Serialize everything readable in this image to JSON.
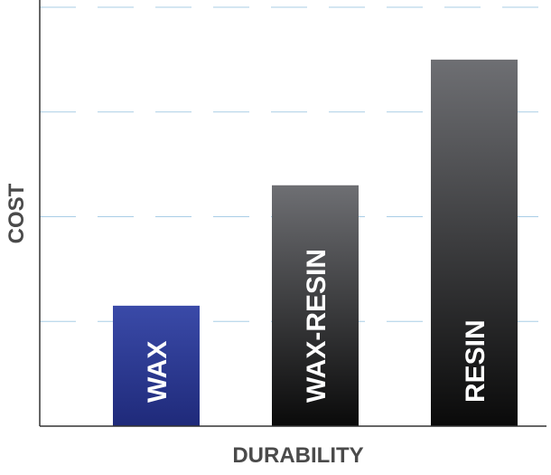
{
  "chart_data": {
    "type": "bar",
    "title": "",
    "xlabel": "DURABILITY",
    "ylabel": "COST",
    "categories": [
      "WAX",
      "WAX-RESIN",
      "RESIN"
    ],
    "values": [
      1.15,
      2.3,
      3.5
    ],
    "ylim": [
      0,
      4
    ],
    "grid": true,
    "legend": "none",
    "colors": {
      "wax_top": "#3a4aa8",
      "wax_bottom": "#1f2a7a",
      "grey_top": "#6e6f73",
      "grey_bottom": "#0a0a0a",
      "grid": "#a9cde6",
      "axis": "#333333"
    }
  }
}
